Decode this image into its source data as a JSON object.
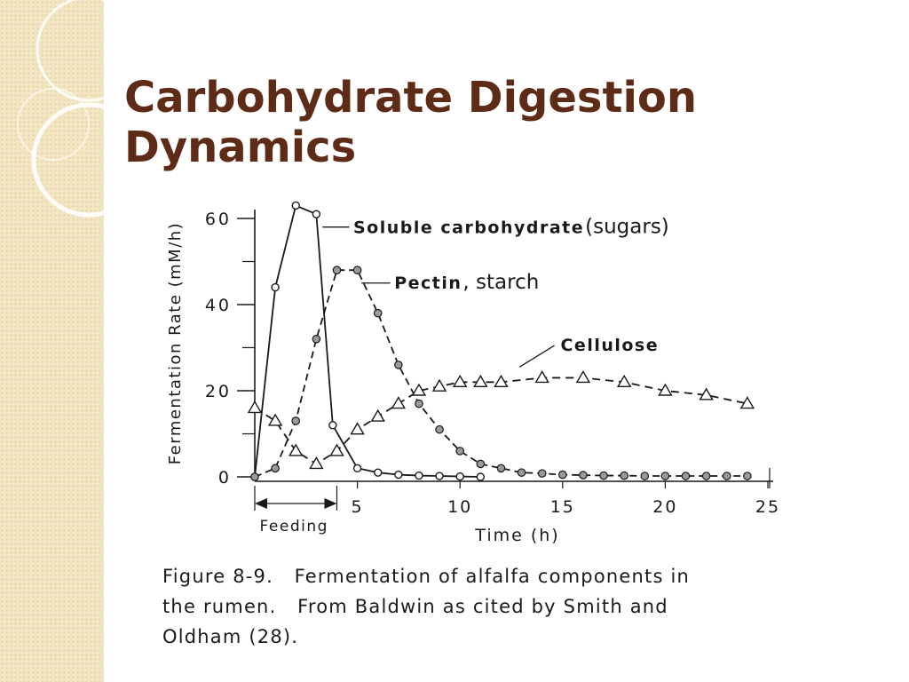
{
  "slide": {
    "title_lines": [
      "Carbohydrate Digestion",
      "Dynamics"
    ],
    "caption_lines": [
      "Figure 8-9.   Fermentation of alfalfa components in",
      "the rumen.   From Baldwin as cited by Smith and",
      "Oldham (28)."
    ]
  },
  "colors": {
    "title": "#5e2b17",
    "ink": "#1a1a1a",
    "strip": "#f3e6c4"
  },
  "chart_data": {
    "type": "line",
    "xlabel": "Time (h)",
    "ylabel": "Fermentation Rate (mM/h)",
    "xlim": [
      0,
      25
    ],
    "ylim": [
      0,
      60
    ],
    "x_ticks": [
      5,
      10,
      15,
      20,
      25
    ],
    "y_ticks": [
      0,
      20,
      40,
      60
    ],
    "grid": false,
    "feeding_label": "Feeding",
    "feeding_range": [
      0,
      4
    ],
    "series": [
      {
        "name": "Soluble carbohydrate",
        "note": "(sugars)",
        "marker": "open-circle",
        "x": [
          0,
          1,
          2,
          3,
          3.8,
          5,
          6,
          7,
          8,
          9,
          10,
          11
        ],
        "y": [
          0,
          44,
          63,
          61,
          12,
          2,
          1,
          0.5,
          0.3,
          0.2,
          0.1,
          0
        ]
      },
      {
        "name": "Pectin",
        "note": ", starch",
        "marker": "filled-circle",
        "x": [
          0,
          1,
          2,
          3,
          4,
          5,
          6,
          7,
          8,
          9,
          10,
          11,
          12,
          13,
          14,
          15,
          16,
          17,
          18,
          19,
          20,
          21,
          22,
          23,
          24
        ],
        "y": [
          0,
          2,
          13,
          32,
          48,
          48,
          38,
          26,
          17,
          11,
          6,
          3,
          2,
          1,
          0.8,
          0.5,
          0.4,
          0.3,
          0.3,
          0.2,
          0.2,
          0.2,
          0.2,
          0.2,
          0.2
        ]
      },
      {
        "name": "Cellulose",
        "note": "",
        "marker": "triangle",
        "x": [
          0,
          1,
          2,
          3,
          4,
          5,
          6,
          7,
          8,
          9,
          10,
          11,
          12,
          14,
          16,
          18,
          20,
          22,
          24
        ],
        "y": [
          16,
          13,
          6,
          3,
          6,
          11,
          14,
          17,
          20,
          21,
          22,
          22,
          22,
          23,
          23,
          22,
          20,
          19,
          17
        ]
      }
    ]
  }
}
